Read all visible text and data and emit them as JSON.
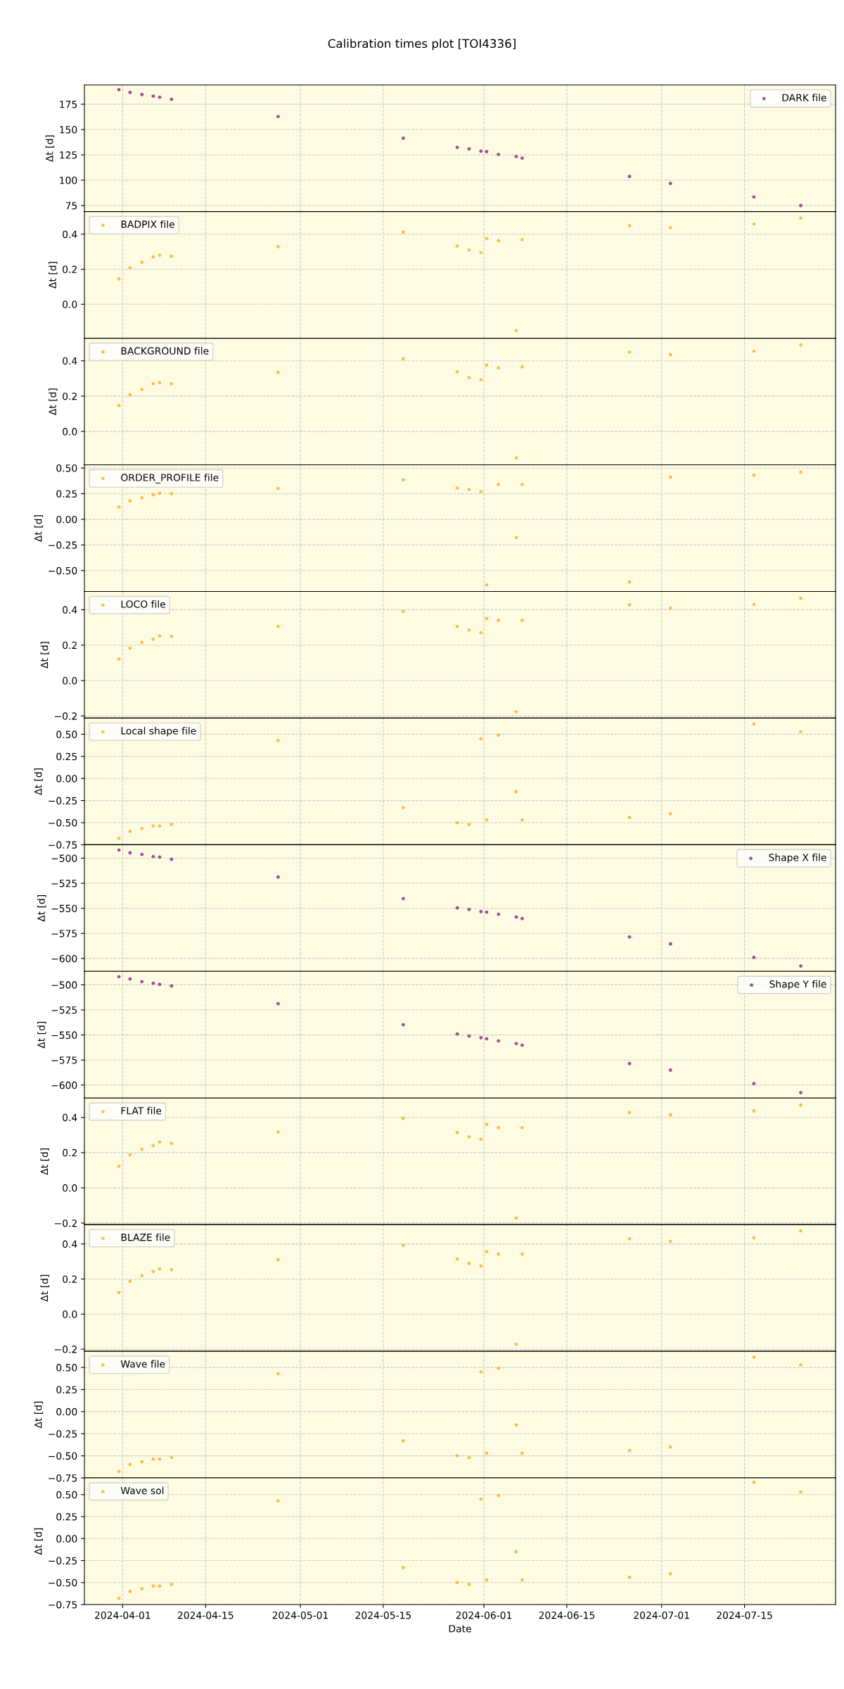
{
  "chart_data": [
    {
      "type": "scatter",
      "title": "Calibration times plot [TOI4336]",
      "ylabel": "Δt [d]",
      "x": [
        "2024-03-31T09:00",
        "2024-04-02T06:00",
        "2024-04-04T06:00",
        "2024-04-06T04:00",
        "2024-04-07T06:00",
        "2024-04-09T06:00",
        "2024-04-27T06:00",
        "2024-05-18T09:00",
        "2024-05-27T12:00",
        "2024-05-29T12:00",
        "2024-05-31T12:00",
        "2024-06-01T11:00",
        "2024-06-03T11:00",
        "2024-06-06T11:00",
        "2024-06-07T11:00",
        "2024-06-25T14:00",
        "2024-07-02T12:00",
        "2024-07-16T14:00",
        "2024-07-24T12:00"
      ],
      "xlim": [
        "2024-03-25T13:00",
        "2024-07-30T09:00"
      ],
      "xticks": [
        "2024-04-01",
        "2024-04-15",
        "2024-05-01",
        "2024-05-15",
        "2024-06-01",
        "2024-06-15",
        "2024-07-01",
        "2024-07-15"
      ],
      "ylim": [
        69,
        194
      ],
      "yticks": [
        75,
        100,
        125,
        150,
        175
      ],
      "tick_labels": "y",
      "grid": true,
      "legend": "top right",
      "marker": "circle",
      "series": [
        {
          "name": "DARK file",
          "color": "#800080",
          "values": [
            189.4,
            186.7,
            184.6,
            183,
            181.9,
            179.8,
            162.8,
            141.5,
            132.4,
            130.9,
            128.7,
            128.2,
            125.5,
            123.4,
            121.8,
            103.7,
            96.8,
            83.5,
            75
          ]
        }
      ]
    },
    {
      "type": "scatter",
      "ylabel": "Δt [d]",
      "x": [
        "2024-03-31T09:00",
        "2024-04-02T06:00",
        "2024-04-04T06:00",
        "2024-04-06T04:00",
        "2024-04-07T06:00",
        "2024-04-09T06:00",
        "2024-04-27T06:00",
        "2024-05-18T09:00",
        "2024-05-27T12:00",
        "2024-05-29T12:00",
        "2024-05-31T12:00",
        "2024-06-01T11:00",
        "2024-06-03T11:00",
        "2024-06-06T11:00",
        "2024-06-07T11:00",
        "2024-06-25T14:00",
        "2024-07-02T12:00",
        "2024-07-16T14:00",
        "2024-07-24T12:00"
      ],
      "xlim": [
        "2024-03-25T13:00",
        "2024-07-30T09:00"
      ],
      "xticks": [
        "2024-04-01",
        "2024-04-15",
        "2024-05-01",
        "2024-05-15",
        "2024-06-01",
        "2024-06-15",
        "2024-07-01",
        "2024-07-15"
      ],
      "ylim": [
        -0.194,
        0.529
      ],
      "yticks": [
        {
          "value": 0,
          "label": "0.0"
        },
        0.2,
        0.4
      ],
      "tick_labels": "y",
      "grid": true,
      "legend": "top left",
      "marker": "circle",
      "series": [
        {
          "name": "BADPIX file",
          "color": "#ffa500",
          "values": [
            0.145,
            0.209,
            0.24,
            0.27,
            0.28,
            0.274,
            0.329,
            0.412,
            0.332,
            0.31,
            0.295,
            0.375,
            0.363,
            -0.151,
            0.369,
            0.449,
            0.437,
            0.458,
            0.492
          ]
        }
      ]
    },
    {
      "type": "scatter",
      "ylabel": "Δt [d]",
      "x": [
        "2024-03-31T09:00",
        "2024-04-02T06:00",
        "2024-04-04T06:00",
        "2024-04-06T04:00",
        "2024-04-07T06:00",
        "2024-04-09T06:00",
        "2024-04-27T06:00",
        "2024-05-18T09:00",
        "2024-05-27T12:00",
        "2024-05-29T12:00",
        "2024-05-31T12:00",
        "2024-06-01T11:00",
        "2024-06-03T11:00",
        "2024-06-06T11:00",
        "2024-06-07T11:00",
        "2024-06-25T14:00",
        "2024-07-02T12:00",
        "2024-07-16T14:00",
        "2024-07-24T12:00"
      ],
      "xlim": [
        "2024-03-25T13:00",
        "2024-07-30T09:00"
      ],
      "xticks": [
        "2024-04-01",
        "2024-04-15",
        "2024-05-01",
        "2024-05-15",
        "2024-06-01",
        "2024-06-15",
        "2024-07-01",
        "2024-07-15"
      ],
      "ylim": [
        -0.189,
        0.528
      ],
      "yticks": [
        {
          "value": 0,
          "label": "0.0"
        },
        0.2,
        0.4
      ],
      "tick_labels": "y",
      "grid": true,
      "legend": "top left",
      "marker": "circle",
      "series": [
        {
          "name": "BACKGROUND file",
          "color": "#ffa500",
          "values": [
            0.147,
            0.208,
            0.238,
            0.271,
            0.277,
            0.271,
            0.335,
            0.412,
            0.338,
            0.305,
            0.293,
            0.375,
            0.36,
            -0.15,
            0.366,
            0.45,
            0.435,
            0.455,
            0.49
          ]
        }
      ]
    },
    {
      "type": "scatter",
      "ylabel": "Δt [d]",
      "x": [
        "2024-03-31T09:00",
        "2024-04-02T06:00",
        "2024-04-04T06:00",
        "2024-04-06T04:00",
        "2024-04-07T06:00",
        "2024-04-09T06:00",
        "2024-04-27T06:00",
        "2024-05-18T09:00",
        "2024-05-27T12:00",
        "2024-05-29T12:00",
        "2024-05-31T12:00",
        "2024-06-01T11:00",
        "2024-06-03T11:00",
        "2024-06-06T11:00",
        "2024-06-07T11:00",
        "2024-06-25T14:00",
        "2024-07-02T12:00",
        "2024-07-16T14:00",
        "2024-07-24T12:00"
      ],
      "xlim": [
        "2024-03-25T13:00",
        "2024-07-30T09:00"
      ],
      "xticks": [
        "2024-04-01",
        "2024-04-15",
        "2024-05-01",
        "2024-05-15",
        "2024-06-01",
        "2024-06-15",
        "2024-07-01",
        "2024-07-15"
      ],
      "ylim": [
        -0.704,
        0.531
      ],
      "yticks": [
        {
          "value": -0.5,
          "label": "−0.50"
        },
        {
          "value": -0.25,
          "label": "−0.25"
        },
        {
          "value": 0,
          "label": "0.00"
        },
        {
          "value": 0.25,
          "label": "0.25"
        },
        {
          "value": 0.5,
          "label": "0.50"
        }
      ],
      "tick_labels": "y",
      "grid": true,
      "legend": "top left",
      "marker": "circle",
      "series": [
        {
          "name": "ORDER_PROFILE file",
          "color": "#ffa500",
          "values": [
            0.12,
            0.18,
            0.21,
            0.24,
            0.255,
            0.25,
            0.3,
            0.385,
            0.305,
            0.29,
            0.27,
            -0.64,
            0.34,
            -0.177,
            0.34,
            -0.61,
            0.41,
            0.43,
            0.46
          ]
        }
      ]
    },
    {
      "type": "scatter",
      "ylabel": "Δt [d]",
      "x": [
        "2024-03-31T09:00",
        "2024-04-02T06:00",
        "2024-04-04T06:00",
        "2024-04-06T04:00",
        "2024-04-07T06:00",
        "2024-04-09T06:00",
        "2024-04-27T06:00",
        "2024-05-18T09:00",
        "2024-05-27T12:00",
        "2024-05-29T12:00",
        "2024-05-31T12:00",
        "2024-06-01T11:00",
        "2024-06-03T11:00",
        "2024-06-06T11:00",
        "2024-06-07T11:00",
        "2024-06-25T14:00",
        "2024-07-02T12:00",
        "2024-07-16T14:00",
        "2024-07-24T12:00"
      ],
      "xlim": [
        "2024-03-25T13:00",
        "2024-07-30T09:00"
      ],
      "xticks": [
        "2024-04-01",
        "2024-04-15",
        "2024-05-01",
        "2024-05-15",
        "2024-06-01",
        "2024-06-15",
        "2024-07-01",
        "2024-07-15"
      ],
      "ylim": [
        -0.212,
        0.503
      ],
      "yticks": [
        {
          "value": -0.2,
          "label": "−0.2"
        },
        {
          "value": 0,
          "label": "0.0"
        },
        0.2,
        0.4
      ],
      "tick_labels": "y",
      "grid": true,
      "legend": "top left",
      "marker": "circle",
      "series": [
        {
          "name": "LOCO file",
          "color": "#ffa500",
          "values": [
            0.122,
            0.183,
            0.216,
            0.234,
            0.253,
            0.25,
            0.306,
            0.39,
            0.306,
            0.285,
            0.27,
            0.35,
            0.34,
            -0.176,
            0.34,
            0.428,
            0.41,
            0.43,
            0.465
          ]
        }
      ]
    },
    {
      "type": "scatter",
      "ylabel": "Δt [d]",
      "x": [
        "2024-03-31T09:00",
        "2024-04-02T06:00",
        "2024-04-04T06:00",
        "2024-04-06T04:00",
        "2024-04-07T06:00",
        "2024-04-09T06:00",
        "2024-04-27T06:00",
        "2024-05-18T09:00",
        "2024-05-27T12:00",
        "2024-05-29T12:00",
        "2024-05-31T12:00",
        "2024-06-01T11:00",
        "2024-06-03T11:00",
        "2024-06-06T11:00",
        "2024-06-07T11:00",
        "2024-06-25T14:00",
        "2024-07-02T12:00",
        "2024-07-16T14:00",
        "2024-07-24T12:00"
      ],
      "xlim": [
        "2024-03-25T13:00",
        "2024-07-30T09:00"
      ],
      "xticks": [
        "2024-04-01",
        "2024-04-15",
        "2024-05-01",
        "2024-05-15",
        "2024-06-01",
        "2024-06-15",
        "2024-07-01",
        "2024-07-15"
      ],
      "ylim": [
        -0.75,
        0.683
      ],
      "yticks": [
        {
          "value": -0.75,
          "label": "−0.75"
        },
        {
          "value": -0.5,
          "label": "−0.50"
        },
        {
          "value": -0.25,
          "label": "−0.25"
        },
        {
          "value": 0,
          "label": "0.00"
        },
        {
          "value": 0.25,
          "label": "0.25"
        },
        {
          "value": 0.5,
          "label": "0.50"
        }
      ],
      "tick_labels": "y",
      "grid": true,
      "legend": "top left",
      "marker": "circle",
      "series": [
        {
          "name": "Local shape file",
          "color": "#ffa500",
          "values": [
            -0.677,
            -0.598,
            -0.567,
            -0.537,
            -0.537,
            -0.518,
            0.43,
            -0.33,
            -0.5,
            -0.52,
            0.45,
            -0.47,
            0.49,
            -0.15,
            -0.47,
            -0.44,
            -0.4,
            0.616,
            0.53
          ]
        }
      ]
    },
    {
      "type": "scatter",
      "ylabel": "Δt [d]",
      "x": [
        "2024-03-31T09:00",
        "2024-04-02T06:00",
        "2024-04-04T06:00",
        "2024-04-06T04:00",
        "2024-04-07T06:00",
        "2024-04-09T06:00",
        "2024-04-27T06:00",
        "2024-05-18T09:00",
        "2024-05-27T12:00",
        "2024-05-29T12:00",
        "2024-05-31T12:00",
        "2024-06-01T11:00",
        "2024-06-03T11:00",
        "2024-06-06T11:00",
        "2024-06-07T11:00",
        "2024-06-25T14:00",
        "2024-07-02T12:00",
        "2024-07-16T14:00",
        "2024-07-24T12:00"
      ],
      "xlim": [
        "2024-03-25T13:00",
        "2024-07-30T09:00"
      ],
      "xticks": [
        "2024-04-01",
        "2024-04-15",
        "2024-05-01",
        "2024-05-15",
        "2024-06-01",
        "2024-06-15",
        "2024-07-01",
        "2024-07-15"
      ],
      "ylim": [
        -612.9,
        -486.6
      ],
      "yticks": [
        {
          "value": -600,
          "label": "−600"
        },
        {
          "value": -575,
          "label": "−575"
        },
        {
          "value": -550,
          "label": "−550"
        },
        {
          "value": -525,
          "label": "−525"
        },
        {
          "value": -500,
          "label": "−500"
        }
      ],
      "tick_labels": "y",
      "grid": true,
      "legend": "top right",
      "marker": "circle",
      "series": [
        {
          "name": "Shape X file",
          "color": "#800080",
          "values": [
            -491.9,
            -494.6,
            -496.2,
            -498.4,
            -498.9,
            -501.1,
            -518.8,
            -540.3,
            -549.5,
            -551.1,
            -553.2,
            -553.8,
            -555.9,
            -558.6,
            -560.2,
            -578.5,
            -585.5,
            -598.9,
            -607.5
          ]
        }
      ]
    },
    {
      "type": "scatter",
      "ylabel": "Δt [d]",
      "x": [
        "2024-03-31T09:00",
        "2024-04-02T06:00",
        "2024-04-04T06:00",
        "2024-04-06T04:00",
        "2024-04-07T06:00",
        "2024-04-09T06:00",
        "2024-04-27T06:00",
        "2024-05-18T09:00",
        "2024-05-27T12:00",
        "2024-05-29T12:00",
        "2024-05-31T12:00",
        "2024-06-01T11:00",
        "2024-06-03T11:00",
        "2024-06-06T11:00",
        "2024-06-07T11:00",
        "2024-06-25T14:00",
        "2024-07-02T12:00",
        "2024-07-16T14:00",
        "2024-07-24T12:00"
      ],
      "xlim": [
        "2024-03-25T13:00",
        "2024-07-30T09:00"
      ],
      "xticks": [
        "2024-04-01",
        "2024-04-15",
        "2024-05-01",
        "2024-05-15",
        "2024-06-01",
        "2024-06-15",
        "2024-07-01",
        "2024-07-15"
      ],
      "ylim": [
        -612.9,
        -486.6
      ],
      "yticks": [
        {
          "value": -600,
          "label": "−600"
        },
        {
          "value": -575,
          "label": "−575"
        },
        {
          "value": -550,
          "label": "−550"
        },
        {
          "value": -525,
          "label": "−525"
        },
        {
          "value": -500,
          "label": "−500"
        }
      ],
      "tick_labels": "y",
      "grid": true,
      "legend": "top right",
      "marker": "circle",
      "series": [
        {
          "name": "Shape Y file",
          "color": "#800080",
          "values": [
            -491.9,
            -494.1,
            -496.8,
            -498.4,
            -499.5,
            -501.1,
            -518.8,
            -539.8,
            -549,
            -551.1,
            -552.7,
            -553.8,
            -555.9,
            -558.6,
            -560.2,
            -578.5,
            -585,
            -598.4,
            -607.5
          ]
        }
      ]
    },
    {
      "type": "scatter",
      "ylabel": "Δt [d]",
      "x": [
        "2024-03-31T09:00",
        "2024-04-02T06:00",
        "2024-04-04T06:00",
        "2024-04-06T04:00",
        "2024-04-07T06:00",
        "2024-04-09T06:00",
        "2024-04-27T06:00",
        "2024-05-18T09:00",
        "2024-05-27T12:00",
        "2024-05-29T12:00",
        "2024-05-31T12:00",
        "2024-06-01T11:00",
        "2024-06-03T11:00",
        "2024-06-06T11:00",
        "2024-06-07T11:00",
        "2024-06-25T14:00",
        "2024-07-02T12:00",
        "2024-07-16T14:00",
        "2024-07-24T12:00"
      ],
      "xlim": [
        "2024-03-25T13:00",
        "2024-07-30T09:00"
      ],
      "xticks": [
        "2024-04-01",
        "2024-04-15",
        "2024-05-01",
        "2024-05-15",
        "2024-06-01",
        "2024-06-15",
        "2024-07-01",
        "2024-07-15"
      ],
      "ylim": [
        -0.209,
        0.51
      ],
      "yticks": [
        {
          "value": -0.2,
          "label": "−0.2"
        },
        {
          "value": 0,
          "label": "0.0"
        },
        0.2,
        0.4
      ],
      "tick_labels": "y",
      "grid": true,
      "legend": "top left",
      "marker": "circle",
      "series": [
        {
          "name": "FLAT file",
          "color": "#ffa500",
          "values": [
            0.123,
            0.188,
            0.219,
            0.24,
            0.26,
            0.253,
            0.317,
            0.394,
            0.314,
            0.289,
            0.277,
            0.36,
            0.342,
            -0.172,
            0.342,
            0.428,
            0.415,
            0.437,
            0.47
          ]
        }
      ]
    },
    {
      "type": "scatter",
      "ylabel": "Δt [d]",
      "x": [
        "2024-03-31T09:00",
        "2024-04-02T06:00",
        "2024-04-04T06:00",
        "2024-04-06T04:00",
        "2024-04-07T06:00",
        "2024-04-09T06:00",
        "2024-04-27T06:00",
        "2024-05-18T09:00",
        "2024-05-27T12:00",
        "2024-05-29T12:00",
        "2024-05-31T12:00",
        "2024-06-01T11:00",
        "2024-06-03T11:00",
        "2024-06-06T11:00",
        "2024-06-07T11:00",
        "2024-06-25T14:00",
        "2024-07-02T12:00",
        "2024-07-16T14:00",
        "2024-07-24T12:00"
      ],
      "xlim": [
        "2024-03-25T13:00",
        "2024-07-30T09:00"
      ],
      "xticks": [
        "2024-04-01",
        "2024-04-15",
        "2024-05-01",
        "2024-05-15",
        "2024-06-01",
        "2024-06-15",
        "2024-07-01",
        "2024-07-15"
      ],
      "ylim": [
        -0.212,
        0.51
      ],
      "yticks": [
        {
          "value": -0.2,
          "label": "−0.2"
        },
        {
          "value": 0,
          "label": "0.0"
        },
        0.2,
        0.4
      ],
      "tick_labels": "y",
      "grid": true,
      "legend": "top left",
      "marker": "circle",
      "series": [
        {
          "name": "BLAZE file",
          "color": "#ffa500",
          "values": [
            0.123,
            0.188,
            0.219,
            0.243,
            0.258,
            0.253,
            0.31,
            0.392,
            0.314,
            0.289,
            0.275,
            0.356,
            0.342,
            -0.172,
            0.342,
            0.43,
            0.415,
            0.435,
            0.475
          ]
        }
      ]
    },
    {
      "type": "scatter",
      "ylabel": "Δt [d]",
      "x": [
        "2024-03-31T09:00",
        "2024-04-02T06:00",
        "2024-04-04T06:00",
        "2024-04-06T04:00",
        "2024-04-07T06:00",
        "2024-04-09T06:00",
        "2024-04-27T06:00",
        "2024-05-18T09:00",
        "2024-05-27T12:00",
        "2024-05-29T12:00",
        "2024-05-31T12:00",
        "2024-06-01T11:00",
        "2024-06-03T11:00",
        "2024-06-06T11:00",
        "2024-06-07T11:00",
        "2024-06-25T14:00",
        "2024-07-02T12:00",
        "2024-07-16T14:00",
        "2024-07-24T12:00"
      ],
      "xlim": [
        "2024-03-25T13:00",
        "2024-07-30T09:00"
      ],
      "xticks": [
        "2024-04-01",
        "2024-04-15",
        "2024-05-01",
        "2024-05-15",
        "2024-06-01",
        "2024-06-15",
        "2024-07-01",
        "2024-07-15"
      ],
      "ylim": [
        -0.75,
        0.683
      ],
      "yticks": [
        {
          "value": -0.75,
          "label": "−0.75"
        },
        {
          "value": -0.5,
          "label": "−0.50"
        },
        {
          "value": -0.25,
          "label": "−0.25"
        },
        {
          "value": 0,
          "label": "0.00"
        },
        {
          "value": 0.25,
          "label": "0.25"
        },
        {
          "value": 0.5,
          "label": "0.50"
        }
      ],
      "tick_labels": "y",
      "grid": true,
      "legend": "top left",
      "marker": "circle",
      "series": [
        {
          "name": "Wave file",
          "color": "#ffa500",
          "values": [
            -0.677,
            -0.598,
            -0.567,
            -0.537,
            -0.537,
            -0.518,
            0.43,
            -0.33,
            -0.5,
            -0.52,
            0.45,
            -0.47,
            0.49,
            -0.15,
            -0.47,
            -0.44,
            -0.4,
            0.616,
            0.53
          ]
        }
      ]
    },
    {
      "type": "scatter",
      "xlabel": "Date",
      "ylabel": "Δt [d]",
      "x": [
        "2024-03-31T09:00",
        "2024-04-02T06:00",
        "2024-04-04T06:00",
        "2024-04-06T04:00",
        "2024-04-07T06:00",
        "2024-04-09T06:00",
        "2024-04-27T06:00",
        "2024-05-18T09:00",
        "2024-05-27T12:00",
        "2024-05-29T12:00",
        "2024-05-31T12:00",
        "2024-06-01T11:00",
        "2024-06-03T11:00",
        "2024-06-06T11:00",
        "2024-06-07T11:00",
        "2024-06-25T14:00",
        "2024-07-02T12:00",
        "2024-07-16T14:00",
        "2024-07-24T12:00"
      ],
      "xlim": [
        "2024-03-25T13:00",
        "2024-07-30T09:00"
      ],
      "xticks": [
        "2024-04-01",
        "2024-04-15",
        "2024-05-01",
        "2024-05-15",
        "2024-06-01",
        "2024-06-15",
        "2024-07-01",
        "2024-07-15"
      ],
      "ylim": [
        -0.75,
        0.69
      ],
      "yticks": [
        {
          "value": -0.75,
          "label": "−0.75"
        },
        {
          "value": -0.5,
          "label": "−0.50"
        },
        {
          "value": -0.25,
          "label": "−0.25"
        },
        {
          "value": 0,
          "label": "0.00"
        },
        {
          "value": 0.25,
          "label": "0.25"
        },
        {
          "value": 0.5,
          "label": "0.50"
        }
      ],
      "grid": true,
      "legend": "top left",
      "marker": "circle",
      "series": [
        {
          "name": "Wave sol",
          "color": "#ffa500",
          "values": [
            -0.68,
            -0.6,
            -0.57,
            -0.54,
            -0.54,
            -0.52,
            0.43,
            -0.33,
            -0.5,
            -0.52,
            0.45,
            -0.47,
            0.49,
            -0.15,
            -0.47,
            -0.44,
            -0.4,
            0.64,
            0.53
          ]
        }
      ]
    }
  ]
}
